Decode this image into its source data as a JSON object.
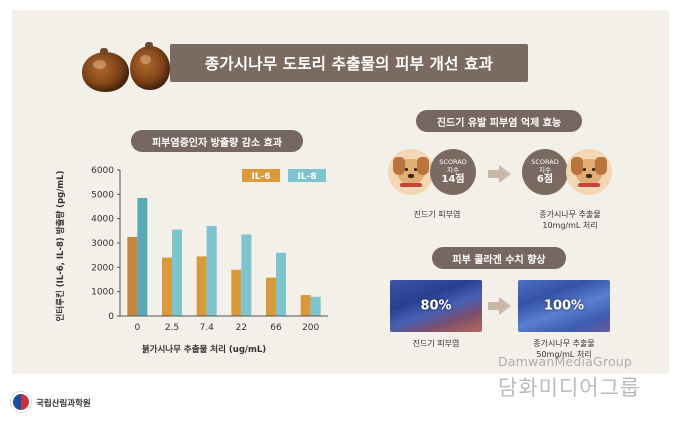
{
  "title": "종가시나무 도토리 추출물의 피부 개선 효과",
  "chart_section": {
    "label": "피부염증인자 방출량 감소 효과"
  },
  "chart_data": {
    "type": "bar",
    "categories": [
      "0",
      "2.5",
      "7.4",
      "22",
      "66",
      "200"
    ],
    "series": [
      {
        "name": "IL-6",
        "values": [
          3250,
          2400,
          2450,
          1900,
          1580,
          860
        ],
        "color": "#d99a3c"
      },
      {
        "name": "IL-8",
        "values": [
          4850,
          3550,
          3700,
          3350,
          2600,
          790
        ],
        "color": "#7ec4cf"
      }
    ],
    "first_bar_colors": [
      "#c8863a",
      "#5aa8b8"
    ],
    "xlabel": "붉가시나무 추출물 처리 (ug/mL)",
    "ylabel": "인터루킨 (IL-6, IL-8) 방출량 (pg/mL)",
    "ylim": [
      0,
      6000
    ],
    "yticks": [
      "0",
      "1000",
      "2000",
      "3000",
      "4000",
      "5000",
      "6000"
    ],
    "legend_position": "top-right",
    "grid": false
  },
  "mite_section": {
    "label": "진드기 유발 피부염 억제 효능",
    "before": {
      "scorad_label": "SCORAD",
      "index_label": "지수",
      "value": "14점",
      "caption": "진드기 피부염"
    },
    "after": {
      "scorad_label": "SCORAD",
      "index_label": "지수",
      "value": "6점",
      "caption_line1": "종가시나무 추출물",
      "caption_line2": "10mg/mL 처리"
    }
  },
  "collagen_section": {
    "label": "피부 콜라겐 수치 향상",
    "before": {
      "value": "80%",
      "caption": "진드기 피부염"
    },
    "after": {
      "value": "100%",
      "caption_line1": "종가시나무 추출물",
      "caption_line2": "50mg/mL 처리"
    }
  },
  "footer": {
    "org_name": "국립산림과학원"
  },
  "watermark": {
    "en": "DamwanMediaGroup",
    "ko": "담화미디어그룹"
  },
  "icons": [
    "acorn-icon",
    "dog-icon",
    "arrow-right-icon",
    "logo-icon"
  ]
}
